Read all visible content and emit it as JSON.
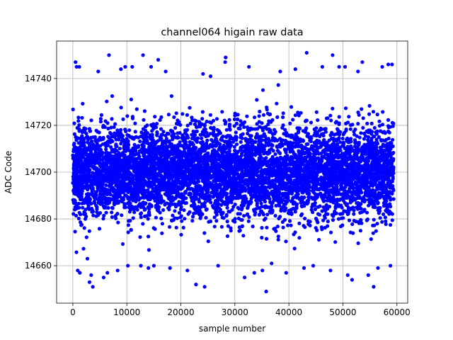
{
  "chart_data": {
    "type": "scatter",
    "title": "channel064 higain raw data",
    "xlabel": "sample number",
    "ylabel": "ADC Code",
    "xlim": [
      -3000,
      62000
    ],
    "ylim": [
      14644,
      14756
    ],
    "xticks": [
      0,
      10000,
      20000,
      30000,
      40000,
      50000,
      60000
    ],
    "yticks": [
      14660,
      14680,
      14700,
      14720,
      14740
    ],
    "grid": true,
    "legend": "none",
    "series": [
      {
        "color": "#0000ff",
        "marker": "circle",
        "x_range": [
          0,
          59400
        ],
        "dense_band": [
          14670,
          14731
        ],
        "mean": 14700,
        "outliers": [
          {
            "x": 500,
            "y": 14747
          },
          {
            "x": 700,
            "y": 14745
          },
          {
            "x": 1200,
            "y": 14745
          },
          {
            "x": 900,
            "y": 14658
          },
          {
            "x": 1300,
            "y": 14657
          },
          {
            "x": 2700,
            "y": 14663
          },
          {
            "x": 3100,
            "y": 14653
          },
          {
            "x": 3700,
            "y": 14651
          },
          {
            "x": 3400,
            "y": 14656
          },
          {
            "x": 4700,
            "y": 14743
          },
          {
            "x": 5700,
            "y": 14655
          },
          {
            "x": 6400,
            "y": 14657
          },
          {
            "x": 6700,
            "y": 14750
          },
          {
            "x": 8300,
            "y": 14658
          },
          {
            "x": 8900,
            "y": 14744
          },
          {
            "x": 9700,
            "y": 14745
          },
          {
            "x": 10200,
            "y": 14660
          },
          {
            "x": 11000,
            "y": 14745
          },
          {
            "x": 12600,
            "y": 14660
          },
          {
            "x": 13000,
            "y": 14750
          },
          {
            "x": 14000,
            "y": 14659
          },
          {
            "x": 14500,
            "y": 14745
          },
          {
            "x": 15000,
            "y": 14660
          },
          {
            "x": 15800,
            "y": 14748
          },
          {
            "x": 17200,
            "y": 14743
          },
          {
            "x": 18000,
            "y": 14659
          },
          {
            "x": 21200,
            "y": 14658
          },
          {
            "x": 22800,
            "y": 14652
          },
          {
            "x": 24400,
            "y": 14651
          },
          {
            "x": 24100,
            "y": 14742
          },
          {
            "x": 25500,
            "y": 14741
          },
          {
            "x": 26900,
            "y": 14660
          },
          {
            "x": 28300,
            "y": 14749
          },
          {
            "x": 28200,
            "y": 14747
          },
          {
            "x": 31800,
            "y": 14655
          },
          {
            "x": 32600,
            "y": 14745
          },
          {
            "x": 33600,
            "y": 14657
          },
          {
            "x": 35100,
            "y": 14658
          },
          {
            "x": 35800,
            "y": 14649
          },
          {
            "x": 36800,
            "y": 14661
          },
          {
            "x": 38400,
            "y": 14743
          },
          {
            "x": 39500,
            "y": 14657
          },
          {
            "x": 41200,
            "y": 14744
          },
          {
            "x": 42800,
            "y": 14659
          },
          {
            "x": 43300,
            "y": 14751
          },
          {
            "x": 44500,
            "y": 14660
          },
          {
            "x": 46200,
            "y": 14745
          },
          {
            "x": 47700,
            "y": 14658
          },
          {
            "x": 48100,
            "y": 14750
          },
          {
            "x": 49300,
            "y": 14745
          },
          {
            "x": 50400,
            "y": 14745
          },
          {
            "x": 50900,
            "y": 14656
          },
          {
            "x": 51700,
            "y": 14654
          },
          {
            "x": 52800,
            "y": 14743
          },
          {
            "x": 53600,
            "y": 14747
          },
          {
            "x": 54700,
            "y": 14656
          },
          {
            "x": 55700,
            "y": 14651
          },
          {
            "x": 56500,
            "y": 14659
          },
          {
            "x": 57300,
            "y": 14745
          },
          {
            "x": 58400,
            "y": 14746
          },
          {
            "x": 58800,
            "y": 14660
          },
          {
            "x": 59100,
            "y": 14746
          }
        ]
      }
    ]
  }
}
